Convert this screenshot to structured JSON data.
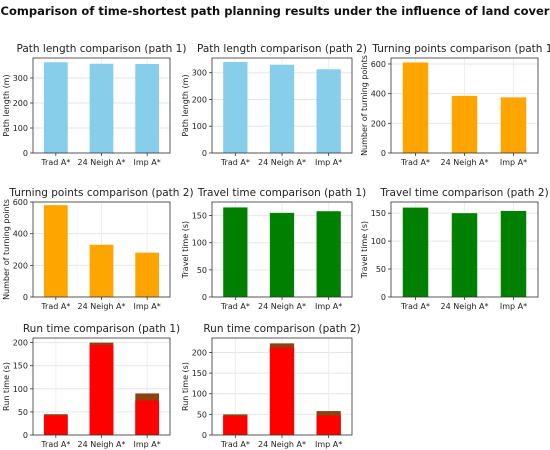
{
  "figure": {
    "title": "Comparison of time-shortest path planning results under the influence of land cover"
  },
  "chart_data": [
    {
      "type": "bar",
      "title": "Path length comparison (path 1)",
      "xlabel": "",
      "ylabel": "Path length (m)",
      "categories": [
        "Trad A*",
        "24 Neigh A*",
        "Imp A*"
      ],
      "series": [
        {
          "values": [
            363,
            357,
            356
          ],
          "color": "#87ceeb"
        }
      ],
      "ylim": [
        0,
        380
      ],
      "yticks": [
        0,
        100,
        200,
        300
      ],
      "grid": true
    },
    {
      "type": "bar",
      "title": "Path length comparison (path 2)",
      "xlabel": "",
      "ylabel": "Path length (m)",
      "categories": [
        "Trad A*",
        "24 Neigh A*",
        "Imp A*"
      ],
      "series": [
        {
          "values": [
            340,
            330,
            313
          ],
          "color": "#87ceeb"
        }
      ],
      "ylim": [
        0,
        355
      ],
      "yticks": [
        0,
        100,
        200,
        300
      ],
      "grid": true
    },
    {
      "type": "bar",
      "title": "Turning points comparison (path 1)",
      "xlabel": "",
      "ylabel": "Number of turning points",
      "categories": [
        "Trad A*",
        "24 Neigh A*",
        "Imp A*"
      ],
      "series": [
        {
          "values": [
            610,
            385,
            375
          ],
          "color": "#ffa500"
        }
      ],
      "ylim": [
        0,
        640
      ],
      "yticks": [
        0,
        200,
        400,
        600
      ],
      "grid": true
    },
    {
      "type": "bar",
      "title": "Turning points comparison (path 2)",
      "xlabel": "",
      "ylabel": "Number of turning points",
      "categories": [
        "Trad A*",
        "24 Neigh A*",
        "Imp A*"
      ],
      "series": [
        {
          "values": [
            580,
            330,
            280
          ],
          "color": "#ffa500"
        }
      ],
      "ylim": [
        0,
        600
      ],
      "yticks": [
        0,
        200,
        400,
        600
      ],
      "grid": true
    },
    {
      "type": "bar",
      "title": "Travel time comparison (path 1)",
      "xlabel": "",
      "ylabel": "Travel time (s)",
      "categories": [
        "Trad A*",
        "24 Neigh A*",
        "Imp A*"
      ],
      "series": [
        {
          "values": [
            165,
            155,
            158
          ],
          "color": "#008000"
        }
      ],
      "ylim": [
        0,
        175
      ],
      "yticks": [
        0,
        50,
        100,
        150
      ],
      "grid": true
    },
    {
      "type": "bar",
      "title": "Travel time comparison (path 2)",
      "xlabel": "",
      "ylabel": "Travel time (s)",
      "categories": [
        "Trad A*",
        "24 Neigh A*",
        "Imp A*"
      ],
      "series": [
        {
          "values": [
            160,
            150,
            154
          ],
          "color": "#008000"
        }
      ],
      "ylim": [
        0,
        170
      ],
      "yticks": [
        0,
        50,
        100,
        150
      ],
      "grid": true
    },
    {
      "type": "bar",
      "title": "Run time comparison (path 1)",
      "xlabel": "",
      "ylabel": "Run time (s)",
      "categories": [
        "Trad A*",
        "24 Neigh A*",
        "Imp A*"
      ],
      "series": [
        {
          "values": [
            45,
            200,
            90
          ],
          "color": "#8b4513"
        },
        {
          "values": [
            42,
            195,
            75
          ],
          "color": "#ff0000"
        }
      ],
      "ylim": [
        0,
        210
      ],
      "yticks": [
        0,
        50,
        100,
        150,
        200
      ],
      "grid": true
    },
    {
      "type": "bar",
      "title": "Run time comparison (path 2)",
      "xlabel": "",
      "ylabel": "Run time (s)",
      "categories": [
        "Trad A*",
        "24 Neigh A*",
        "Imp A*"
      ],
      "series": [
        {
          "values": [
            50,
            222,
            58
          ],
          "color": "#8b4513"
        },
        {
          "values": [
            46,
            212,
            47
          ],
          "color": "#ff0000"
        }
      ],
      "ylim": [
        0,
        235
      ],
      "yticks": [
        0,
        50,
        100,
        150,
        200
      ],
      "grid": true
    }
  ]
}
